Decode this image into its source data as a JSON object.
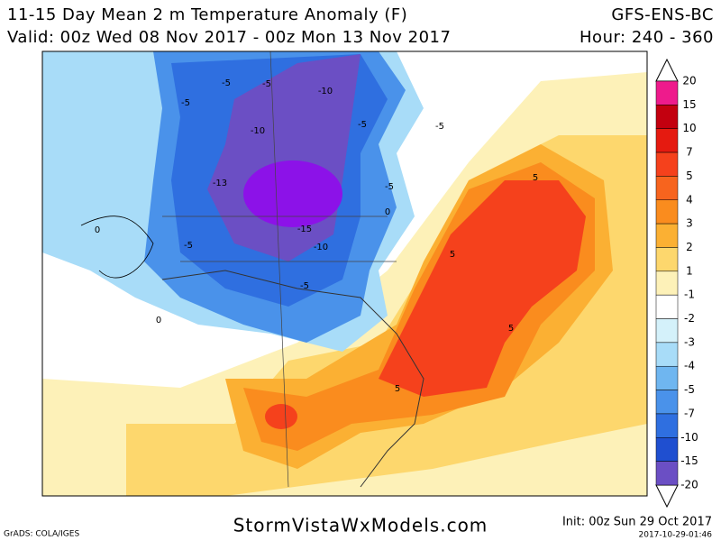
{
  "header": {
    "title": "11-15 Day Mean 2 m Temperature Anomaly (F)",
    "model": "GFS-ENS-BC",
    "valid": "Valid: 00z Wed 08 Nov 2017 - 00z Mon 13 Nov 2017",
    "hour": "Hour: 240 - 360"
  },
  "colorbar": {
    "labels": [
      "20",
      "15",
      "10",
      "7",
      "5",
      "4",
      "3",
      "2",
      "1",
      "-1",
      "-2",
      "-3",
      "-4",
      "-5",
      "-7",
      "-10",
      "-15",
      "-20"
    ],
    "colors": [
      "#ee1b8c",
      "#c3000f",
      "#e51a10",
      "#f5411c",
      "#f7641e",
      "#fa8c1e",
      "#fbb033",
      "#fdd76d",
      "#fdf1b8",
      "#ffffff",
      "#d4f1fa",
      "#a8dcf8",
      "#6fb6f0",
      "#4a92ea",
      "#2f6fe0",
      "#1f4fd0",
      "#6b4fc4",
      "#8c12e8"
    ]
  },
  "map_labels": [
    "-5",
    "-5",
    "-5",
    "-10",
    "-10",
    "-5",
    "-5",
    "-13",
    "-5",
    "-15",
    "-10",
    "-5",
    "-5",
    "5",
    "5",
    "5",
    "5",
    "0",
    "0",
    "0"
  ],
  "footer": {
    "source": "GrADS: COLA/IGES",
    "site": "StormVistaWxModels.com",
    "init": "Init: 00z Sun 29 Oct 2017",
    "timestamp": "2017-10-29-01:46"
  }
}
